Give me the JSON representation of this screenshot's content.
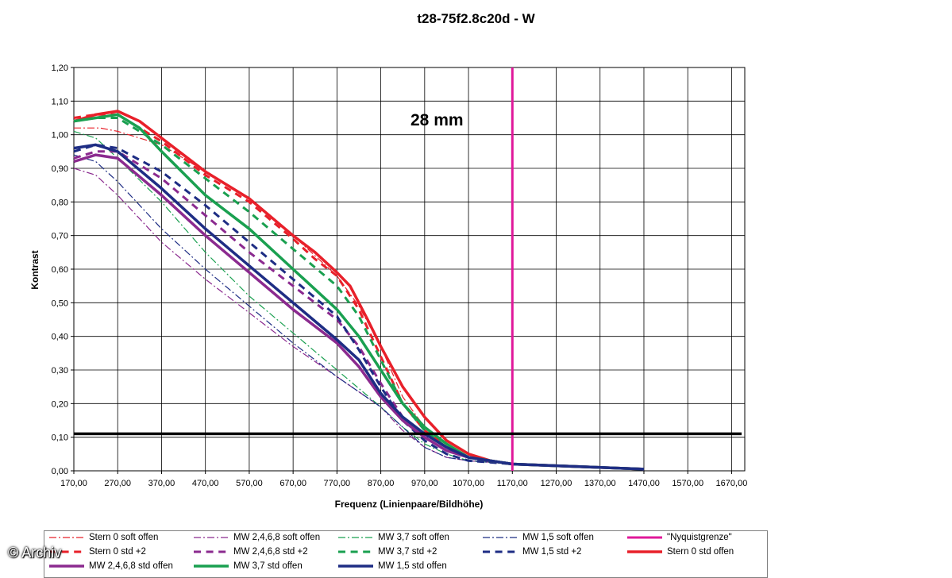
{
  "watermark": "© Archiv",
  "chart_data": {
    "type": "line",
    "title": "t28-75f2.8c20d - W",
    "annotation": "28 mm",
    "xlabel": "Frequenz (Linienpaare/Bildhöhe)",
    "ylabel": "Kontrast",
    "xlim": [
      170,
      1700
    ],
    "ylim": [
      0,
      1.2
    ],
    "x_ticks": [
      "170,00",
      "270,00",
      "370,00",
      "470,00",
      "570,00",
      "670,00",
      "770,00",
      "870,00",
      "970,00",
      "1070,00",
      "1170,00",
      "1270,00",
      "1370,00",
      "1470,00",
      "1570,00",
      "1670,00"
    ],
    "y_ticks": [
      "0,00",
      "0,10",
      "0,20",
      "0,30",
      "0,40",
      "0,50",
      "0,60",
      "0,70",
      "0,80",
      "0,90",
      "1,00",
      "1,10",
      "1,20"
    ],
    "grid": true,
    "legend_position": "bottom",
    "reference_lines": [
      {
        "name": "\"Nyquistgrenze\"",
        "orientation": "vertical",
        "x": 1170,
        "color": "#e0189a"
      },
      {
        "name": "",
        "orientation": "horizontal",
        "y": 0.11,
        "color": "#000000"
      }
    ],
    "series": [
      {
        "name": "Stern 0 soft offen",
        "color": "#e8202a",
        "style": "dashdot",
        "width": 1.2,
        "points": [
          [
            170,
            1.02
          ],
          [
            230,
            1.02
          ],
          [
            270,
            1.01
          ],
          [
            370,
            0.97
          ],
          [
            470,
            0.89
          ],
          [
            570,
            0.81
          ],
          [
            670,
            0.7
          ],
          [
            770,
            0.58
          ],
          [
            820,
            0.49
          ],
          [
            870,
            0.37
          ],
          [
            920,
            0.22
          ],
          [
            970,
            0.13
          ],
          [
            1020,
            0.07
          ],
          [
            1070,
            0.04
          ],
          [
            1170,
            0.02
          ],
          [
            1270,
            0.015
          ],
          [
            1470,
            0.005
          ]
        ]
      },
      {
        "name": "MW 2,4,6,8 soft offen",
        "color": "#8b2a8f",
        "style": "dashdot",
        "width": 1.2,
        "points": [
          [
            170,
            0.9
          ],
          [
            220,
            0.88
          ],
          [
            270,
            0.82
          ],
          [
            370,
            0.68
          ],
          [
            470,
            0.57
          ],
          [
            570,
            0.47
          ],
          [
            670,
            0.37
          ],
          [
            770,
            0.28
          ],
          [
            870,
            0.19
          ],
          [
            920,
            0.12
          ],
          [
            970,
            0.07
          ],
          [
            1020,
            0.04
          ],
          [
            1070,
            0.03
          ],
          [
            1170,
            0.02
          ],
          [
            1270,
            0.015
          ],
          [
            1470,
            0.005
          ]
        ]
      },
      {
        "name": "MW 3,7 soft offen",
        "color": "#1aa050",
        "style": "dashdot",
        "width": 1.2,
        "points": [
          [
            170,
            1.01
          ],
          [
            220,
            0.99
          ],
          [
            270,
            0.93
          ],
          [
            370,
            0.8
          ],
          [
            470,
            0.65
          ],
          [
            570,
            0.52
          ],
          [
            670,
            0.41
          ],
          [
            770,
            0.3
          ],
          [
            870,
            0.19
          ],
          [
            920,
            0.13
          ],
          [
            970,
            0.08
          ],
          [
            1020,
            0.05
          ],
          [
            1070,
            0.03
          ],
          [
            1170,
            0.02
          ],
          [
            1270,
            0.015
          ],
          [
            1470,
            0.005
          ]
        ]
      },
      {
        "name": "MW 1,5 soft offen",
        "color": "#1e2d84",
        "style": "dashdot",
        "width": 1.2,
        "points": [
          [
            170,
            0.94
          ],
          [
            220,
            0.92
          ],
          [
            270,
            0.86
          ],
          [
            370,
            0.72
          ],
          [
            470,
            0.6
          ],
          [
            570,
            0.49
          ],
          [
            670,
            0.38
          ],
          [
            770,
            0.28
          ],
          [
            870,
            0.19
          ],
          [
            920,
            0.13
          ],
          [
            970,
            0.07
          ],
          [
            1020,
            0.04
          ],
          [
            1070,
            0.03
          ],
          [
            1170,
            0.02
          ],
          [
            1270,
            0.015
          ],
          [
            1470,
            0.005
          ]
        ]
      },
      {
        "name": "Stern 0 std +2",
        "color": "#e8202a",
        "style": "dash",
        "width": 3,
        "points": [
          [
            170,
            1.05
          ],
          [
            220,
            1.06
          ],
          [
            270,
            1.06
          ],
          [
            370,
            0.98
          ],
          [
            470,
            0.88
          ],
          [
            570,
            0.8
          ],
          [
            670,
            0.69
          ],
          [
            720,
            0.63
          ],
          [
            770,
            0.58
          ],
          [
            820,
            0.48
          ],
          [
            870,
            0.34
          ],
          [
            920,
            0.2
          ],
          [
            970,
            0.12
          ],
          [
            1020,
            0.07
          ],
          [
            1070,
            0.04
          ],
          [
            1170,
            0.02
          ],
          [
            1270,
            0.015
          ],
          [
            1470,
            0.005
          ]
        ]
      },
      {
        "name": "MW 2,4,6,8 std +2",
        "color": "#8b2a8f",
        "style": "dash",
        "width": 3,
        "points": [
          [
            170,
            0.93
          ],
          [
            220,
            0.95
          ],
          [
            270,
            0.95
          ],
          [
            370,
            0.87
          ],
          [
            470,
            0.76
          ],
          [
            570,
            0.65
          ],
          [
            670,
            0.55
          ],
          [
            770,
            0.45
          ],
          [
            820,
            0.37
          ],
          [
            870,
            0.26
          ],
          [
            920,
            0.16
          ],
          [
            970,
            0.1
          ],
          [
            1020,
            0.06
          ],
          [
            1070,
            0.04
          ],
          [
            1170,
            0.02
          ],
          [
            1270,
            0.015
          ],
          [
            1470,
            0.005
          ]
        ]
      },
      {
        "name": "MW 3,7 std +2",
        "color": "#1aa050",
        "style": "dash",
        "width": 3,
        "points": [
          [
            170,
            1.04
          ],
          [
            220,
            1.05
          ],
          [
            270,
            1.05
          ],
          [
            370,
            0.97
          ],
          [
            470,
            0.87
          ],
          [
            570,
            0.77
          ],
          [
            670,
            0.66
          ],
          [
            770,
            0.55
          ],
          [
            820,
            0.46
          ],
          [
            870,
            0.33
          ],
          [
            920,
            0.2
          ],
          [
            970,
            0.12
          ],
          [
            1020,
            0.07
          ],
          [
            1070,
            0.04
          ],
          [
            1170,
            0.02
          ],
          [
            1270,
            0.015
          ],
          [
            1470,
            0.005
          ]
        ]
      },
      {
        "name": "MW 1,5 std +2",
        "color": "#1e2d84",
        "style": "dash",
        "width": 3,
        "points": [
          [
            170,
            0.95
          ],
          [
            220,
            0.97
          ],
          [
            270,
            0.96
          ],
          [
            370,
            0.89
          ],
          [
            470,
            0.79
          ],
          [
            570,
            0.68
          ],
          [
            670,
            0.57
          ],
          [
            770,
            0.46
          ],
          [
            820,
            0.36
          ],
          [
            870,
            0.25
          ],
          [
            920,
            0.15
          ],
          [
            970,
            0.09
          ],
          [
            1020,
            0.05
          ],
          [
            1070,
            0.03
          ],
          [
            1170,
            0.02
          ],
          [
            1270,
            0.015
          ],
          [
            1470,
            0.005
          ]
        ]
      },
      {
        "name": "Stern 0 std offen",
        "color": "#e8202a",
        "style": "solid",
        "width": 3.5,
        "points": [
          [
            170,
            1.04
          ],
          [
            220,
            1.06
          ],
          [
            270,
            1.07
          ],
          [
            320,
            1.04
          ],
          [
            370,
            0.99
          ],
          [
            470,
            0.89
          ],
          [
            570,
            0.81
          ],
          [
            670,
            0.7
          ],
          [
            720,
            0.65
          ],
          [
            770,
            0.59
          ],
          [
            800,
            0.55
          ],
          [
            840,
            0.45
          ],
          [
            870,
            0.37
          ],
          [
            920,
            0.25
          ],
          [
            970,
            0.16
          ],
          [
            1020,
            0.09
          ],
          [
            1070,
            0.05
          ],
          [
            1120,
            0.03
          ],
          [
            1170,
            0.02
          ],
          [
            1270,
            0.015
          ],
          [
            1370,
            0.01
          ],
          [
            1470,
            0.005
          ]
        ]
      },
      {
        "name": "MW 2,4,6,8 std offen",
        "color": "#8b2a8f",
        "style": "solid",
        "width": 3.5,
        "points": [
          [
            170,
            0.92
          ],
          [
            220,
            0.94
          ],
          [
            270,
            0.93
          ],
          [
            370,
            0.82
          ],
          [
            470,
            0.7
          ],
          [
            570,
            0.59
          ],
          [
            670,
            0.48
          ],
          [
            770,
            0.38
          ],
          [
            820,
            0.31
          ],
          [
            870,
            0.22
          ],
          [
            920,
            0.15
          ],
          [
            970,
            0.1
          ],
          [
            1020,
            0.06
          ],
          [
            1070,
            0.04
          ],
          [
            1170,
            0.02
          ],
          [
            1270,
            0.015
          ],
          [
            1470,
            0.005
          ]
        ]
      },
      {
        "name": "MW 3,7 std offen",
        "color": "#1aa050",
        "style": "solid",
        "width": 3.5,
        "points": [
          [
            170,
            1.04
          ],
          [
            220,
            1.05
          ],
          [
            270,
            1.06
          ],
          [
            320,
            1.02
          ],
          [
            370,
            0.95
          ],
          [
            470,
            0.82
          ],
          [
            570,
            0.72
          ],
          [
            670,
            0.6
          ],
          [
            770,
            0.48
          ],
          [
            820,
            0.4
          ],
          [
            870,
            0.3
          ],
          [
            920,
            0.2
          ],
          [
            970,
            0.13
          ],
          [
            1020,
            0.08
          ],
          [
            1070,
            0.04
          ],
          [
            1170,
            0.02
          ],
          [
            1270,
            0.015
          ],
          [
            1470,
            0.005
          ]
        ]
      },
      {
        "name": "MW 1,5 std offen",
        "color": "#1e2d84",
        "style": "solid",
        "width": 3.5,
        "points": [
          [
            170,
            0.96
          ],
          [
            220,
            0.97
          ],
          [
            270,
            0.95
          ],
          [
            370,
            0.84
          ],
          [
            470,
            0.72
          ],
          [
            570,
            0.61
          ],
          [
            670,
            0.5
          ],
          [
            770,
            0.39
          ],
          [
            820,
            0.33
          ],
          [
            870,
            0.23
          ],
          [
            920,
            0.16
          ],
          [
            970,
            0.11
          ],
          [
            1020,
            0.07
          ],
          [
            1070,
            0.04
          ],
          [
            1170,
            0.02
          ],
          [
            1270,
            0.015
          ],
          [
            1470,
            0.005
          ]
        ]
      }
    ]
  }
}
